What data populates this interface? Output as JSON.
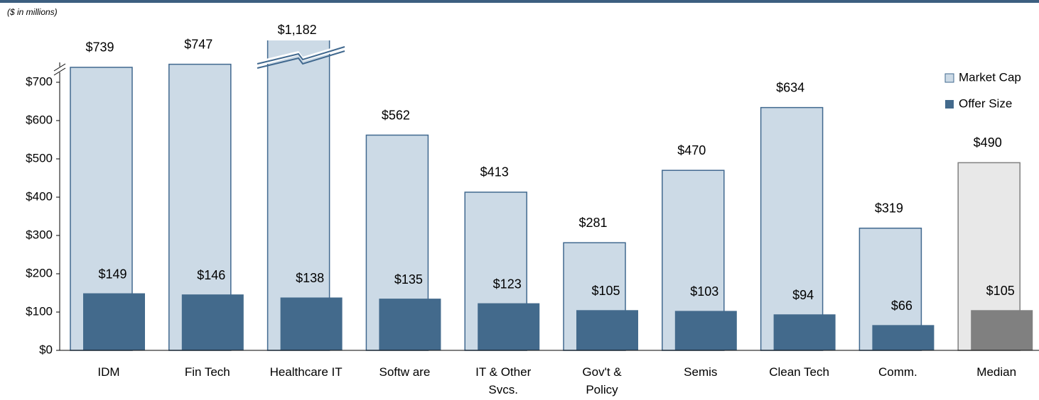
{
  "chart_data": {
    "type": "bar",
    "subtitle": "($ in millions)",
    "categories": [
      "IDM",
      "Fin Tech",
      "Healthcare IT",
      "Softw are",
      "IT & Other\nSvcs.",
      "Gov't &\nPolicy",
      "Semis",
      "Clean Tech",
      "Comm.",
      "Median"
    ],
    "series": [
      {
        "name": "Market Cap",
        "color": "#ccdae6",
        "colors": [
          "#ccdae6",
          "#ccdae6",
          "#ccdae6",
          "#ccdae6",
          "#ccdae6",
          "#ccdae6",
          "#ccdae6",
          "#ccdae6",
          "#ccdae6",
          "#e8e8e8"
        ],
        "values": [
          739,
          747,
          1182,
          562,
          413,
          281,
          470,
          634,
          319,
          490
        ],
        "value_labels": [
          "$739",
          "$747",
          "$1,182",
          "$562",
          "$413",
          "$281",
          "$470",
          "$634",
          "$319",
          "$490"
        ]
      },
      {
        "name": "Offer Size",
        "color": "#436a8c",
        "colors": [
          "#436a8c",
          "#436a8c",
          "#436a8c",
          "#436a8c",
          "#436a8c",
          "#436a8c",
          "#436a8c",
          "#436a8c",
          "#436a8c",
          "#808080"
        ],
        "values": [
          149,
          146,
          138,
          135,
          123,
          105,
          103,
          94,
          66,
          105
        ],
        "value_labels": [
          "$149",
          "$146",
          "$138",
          "$135",
          "$123",
          "$105",
          "$103",
          "$94",
          "$66",
          "$105"
        ]
      }
    ],
    "ylim": [
      0,
      700
    ],
    "yticks": [
      {
        "value": 0,
        "label": "$0"
      },
      {
        "value": 100,
        "label": "$100"
      },
      {
        "value": 200,
        "label": "$200"
      },
      {
        "value": 300,
        "label": "$300"
      },
      {
        "value": 400,
        "label": "$400"
      },
      {
        "value": 500,
        "label": "$500"
      },
      {
        "value": 600,
        "label": "$600"
      },
      {
        "value": 700,
        "label": "$700"
      }
    ],
    "legend": "top-right",
    "grid": false
  }
}
